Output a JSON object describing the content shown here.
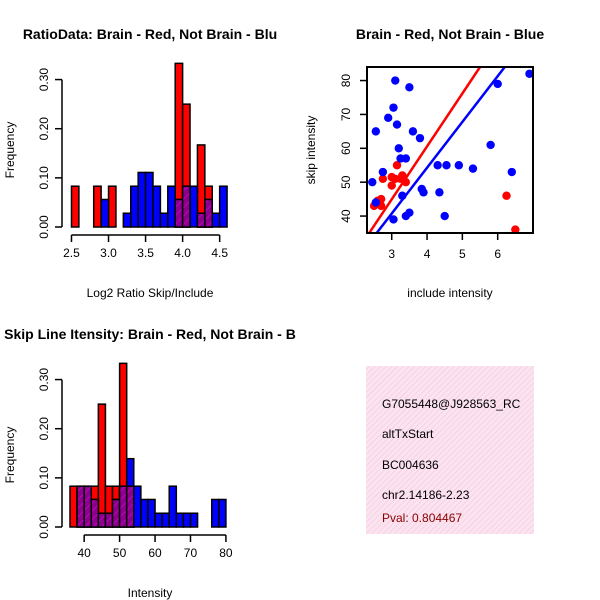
{
  "colors": {
    "red": "#ff0000",
    "blue": "#0000ff",
    "purple": "#8b008b",
    "pink_bg": "#f8dcec",
    "pval": "#8b0000",
    "axis": "#000000"
  },
  "chart_data": [
    {
      "type": "bar",
      "title": "RatioData: Brain - Red, Not Brain - Blu",
      "xlabel": "Log2 Ratio Skip/Include",
      "ylabel": "Frequency",
      "xlim": [
        2.48,
        4.68
      ],
      "ylim": [
        0,
        0.35
      ],
      "xticks": [
        2.5,
        3.0,
        3.5,
        4.0,
        4.5
      ],
      "xtick_labels": [
        "2.5",
        "3.0",
        "3.5",
        "4.0",
        "4.5"
      ],
      "yticks": [
        0,
        0.1,
        0.2,
        0.3
      ],
      "ytick_labels": [
        "0.00",
        "0.10",
        "0.20",
        "0.30"
      ],
      "bin_width": 0.1,
      "series": [
        {
          "name": "Brain",
          "color": "red",
          "bins": [
            [
              2.5,
              0.083
            ],
            [
              2.8,
              0.083
            ],
            [
              3.0,
              0.083
            ],
            [
              3.9,
              0.333
            ],
            [
              4.0,
              0.25
            ],
            [
              4.2,
              0.167
            ],
            [
              4.3,
              0.083
            ]
          ]
        },
        {
          "name": "Not Brain",
          "color": "blue",
          "bins": [
            [
              2.9,
              0.056
            ],
            [
              3.2,
              0.028
            ],
            [
              3.3,
              0.083
            ],
            [
              3.4,
              0.111
            ],
            [
              3.5,
              0.111
            ],
            [
              3.6,
              0.083
            ],
            [
              3.7,
              0.028
            ],
            [
              3.8,
              0.083
            ],
            [
              3.9,
              0.056
            ],
            [
              4.0,
              0.083
            ],
            [
              4.1,
              0.083
            ],
            [
              4.2,
              0.028
            ],
            [
              4.3,
              0.056
            ],
            [
              4.4,
              0.028
            ],
            [
              4.5,
              0.083
            ]
          ]
        }
      ]
    },
    {
      "type": "scatter",
      "title": "Brain - Red, Not Brain - Blue",
      "xlabel": "include intensity",
      "ylabel": "skip intensity",
      "xlim": [
        2.3,
        7.0
      ],
      "ylim": [
        35,
        84
      ],
      "xticks": [
        3,
        4,
        5,
        6
      ],
      "xtick_labels": [
        "3",
        "4",
        "5",
        "6"
      ],
      "yticks": [
        40,
        50,
        60,
        70,
        80
      ],
      "ytick_labels": [
        "40",
        "50",
        "60",
        "70",
        "80"
      ],
      "series": [
        {
          "name": "Brain",
          "color": "red",
          "points": [
            [
              2.5,
              43
            ],
            [
              2.6,
              44.5
            ],
            [
              2.7,
              45
            ],
            [
              2.75,
              51
            ],
            [
              2.7,
              43
            ],
            [
              3.0,
              49
            ],
            [
              3.0,
              51.5
            ],
            [
              3.1,
              51
            ],
            [
              3.15,
              55
            ],
            [
              3.25,
              51
            ],
            [
              3.3,
              52
            ],
            [
              3.4,
              50
            ],
            [
              6.25,
              46
            ],
            [
              6.5,
              36
            ]
          ]
        },
        {
          "name": "Not Brain",
          "color": "blue",
          "points": [
            [
              2.45,
              50
            ],
            [
              2.55,
              65
            ],
            [
              2.75,
              53
            ],
            [
              2.9,
              69
            ],
            [
              3.05,
              72
            ],
            [
              3.1,
              80
            ],
            [
              3.15,
              67
            ],
            [
              3.2,
              60
            ],
            [
              3.25,
              57
            ],
            [
              3.3,
              46
            ],
            [
              3.4,
              57
            ],
            [
              3.5,
              78
            ],
            [
              3.6,
              65
            ],
            [
              3.8,
              63
            ],
            [
              3.85,
              48
            ],
            [
              3.9,
              47
            ],
            [
              4.3,
              55
            ],
            [
              4.35,
              47
            ],
            [
              4.5,
              40
            ],
            [
              4.55,
              55
            ],
            [
              4.9,
              55
            ],
            [
              5.3,
              54
            ],
            [
              5.8,
              61
            ],
            [
              6.0,
              79
            ],
            [
              6.4,
              53
            ],
            [
              6.9,
              82
            ],
            [
              3.05,
              39
            ],
            [
              3.4,
              40
            ],
            [
              3.5,
              41
            ],
            [
              2.55,
              44
            ]
          ]
        }
      ],
      "lines": [
        {
          "name": "Brain fit",
          "color": "red",
          "from": [
            2.3,
            34
          ],
          "to": [
            5.5,
            84
          ]
        },
        {
          "name": "Not Brain fit",
          "color": "blue",
          "from": [
            2.5,
            34
          ],
          "to": [
            6.2,
            84
          ]
        }
      ]
    },
    {
      "type": "bar",
      "title": "Skip Line Itensity: Brain - Red, Not Brain - B",
      "xlabel": "Intensity",
      "ylabel": "Frequency",
      "xlim": [
        36,
        82
      ],
      "ylim": [
        0,
        0.35
      ],
      "xticks": [
        40,
        50,
        60,
        70,
        80
      ],
      "xtick_labels": [
        "40",
        "50",
        "60",
        "70",
        "80"
      ],
      "yticks": [
        0,
        0.1,
        0.2,
        0.3
      ],
      "ytick_labels": [
        "0.00",
        "0.10",
        "0.20",
        "0.30"
      ],
      "bin_width": 2,
      "series": [
        {
          "name": "Brain",
          "color": "red",
          "bins": [
            [
              36,
              0.083
            ],
            [
              38,
              0.083
            ],
            [
              40,
              0.083
            ],
            [
              42,
              0.083
            ],
            [
              44,
              0.25
            ],
            [
              46,
              0.083
            ],
            [
              48,
              0.083
            ],
            [
              50,
              0.333
            ],
            [
              52,
              0.083
            ]
          ]
        },
        {
          "name": "Not Brain",
          "color": "blue",
          "bins": [
            [
              38,
              0.083
            ],
            [
              40,
              0.083
            ],
            [
              42,
              0.056
            ],
            [
              44,
              0.028
            ],
            [
              46,
              0.028
            ],
            [
              48,
              0.056
            ],
            [
              50,
              0.083
            ],
            [
              52,
              0.139
            ],
            [
              54,
              0.083
            ],
            [
              56,
              0.056
            ],
            [
              58,
              0.056
            ],
            [
              60,
              0.028
            ],
            [
              62,
              0.028
            ],
            [
              64,
              0.083
            ],
            [
              66,
              0.028
            ],
            [
              68,
              0.028
            ],
            [
              70,
              0.028
            ],
            [
              76,
              0.056
            ],
            [
              78,
              0.056
            ]
          ]
        }
      ]
    }
  ],
  "info_panel": {
    "id_line": "G7055448@J928563_RC",
    "event_type": "altTxStart",
    "accession": "BC004636",
    "location": "chr2.14186-2.23",
    "pval": "Pval: 0.804467"
  }
}
